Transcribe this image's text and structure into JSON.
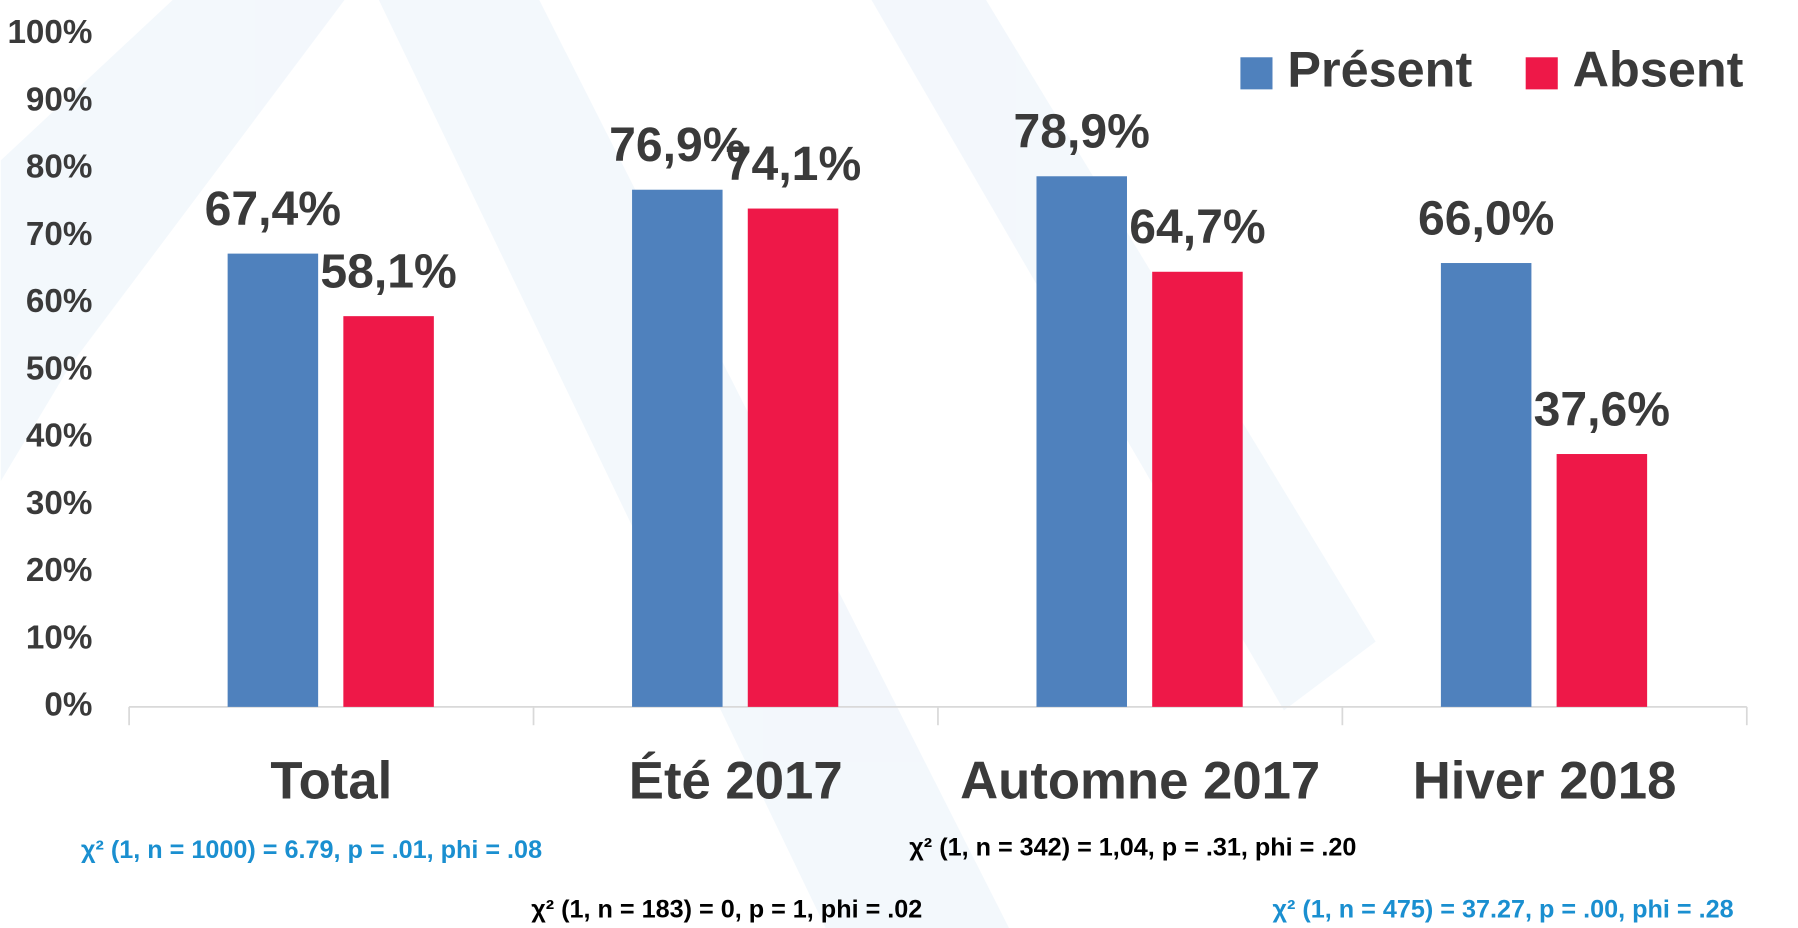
{
  "chart_data": {
    "type": "bar",
    "categories": [
      "Total",
      "Été 2017",
      "Automne 2017",
      "Hiver 2018"
    ],
    "series": [
      {
        "name": "Présent",
        "color": "#4f81bd",
        "values": [
          67.4,
          76.9,
          78.9,
          66.0
        ],
        "value_labels": [
          "67,4%",
          "76,9%",
          "78,9%",
          "66,0%"
        ]
      },
      {
        "name": "Absent",
        "color": "#ee1848",
        "values": [
          58.1,
          74.1,
          64.7,
          37.6
        ],
        "value_labels": [
          "58,1%",
          "74,1%",
          "64,7%",
          "37,6%"
        ]
      }
    ],
    "ylim": [
      0,
      100
    ],
    "yticks": [
      {
        "value": 0,
        "label": "0%"
      },
      {
        "value": 10,
        "label": "10%"
      },
      {
        "value": 20,
        "label": "20%"
      },
      {
        "value": 30,
        "label": "30%"
      },
      {
        "value": 40,
        "label": "40%"
      },
      {
        "value": 50,
        "label": "50%"
      },
      {
        "value": 60,
        "label": "60%"
      },
      {
        "value": 70,
        "label": "70%"
      },
      {
        "value": 80,
        "label": "80%"
      },
      {
        "value": 90,
        "label": "90%"
      },
      {
        "value": 100,
        "label": "100%"
      }
    ],
    "legend": "top-right",
    "annotations": [
      {
        "text": "χ² (1, n = 1000) = 6.79, p = .01, phi = .08",
        "color": "#1a8fd0"
      },
      {
        "text": "χ² (1, n = 183) = 0, p = 1, phi = .02",
        "color": "#000000"
      },
      {
        "text": "χ² (1, n = 342) = 1,04, p = .31, phi = .20",
        "color": "#000000"
      },
      {
        "text": "χ² (1, n = 475) = 37.27, p = .00, phi = .28",
        "color": "#1a8fd0"
      }
    ]
  }
}
